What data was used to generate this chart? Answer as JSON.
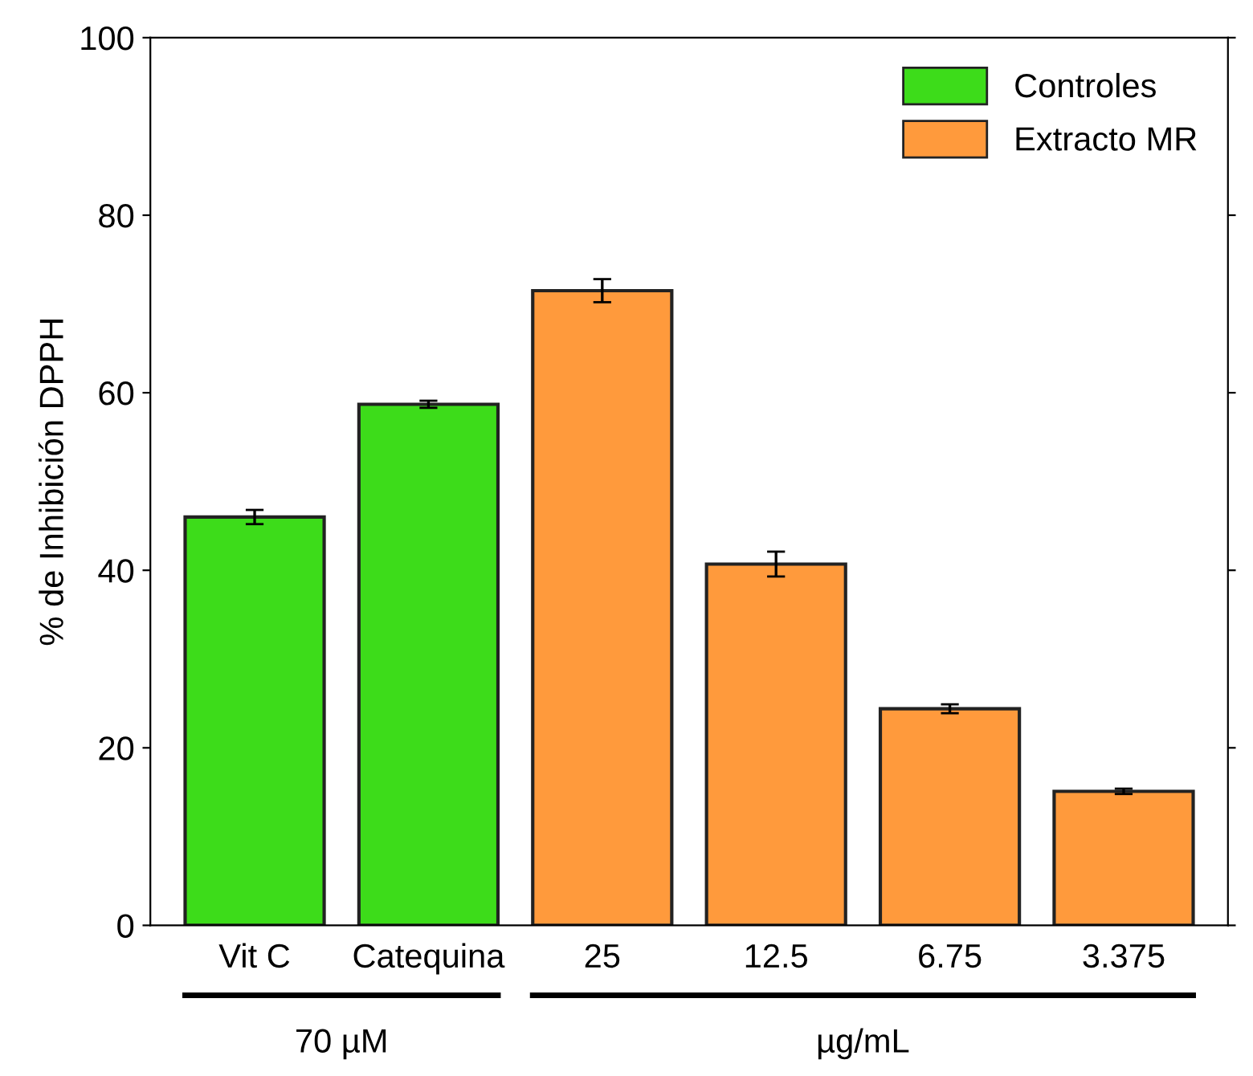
{
  "chart_data": {
    "type": "bar",
    "ylabel": "% de Inhibición DPPH",
    "categories": [
      "Vit C",
      "Catequina",
      "25",
      "12.5",
      "6.75",
      "3.375"
    ],
    "series": [
      {
        "name": "Controles",
        "color": "#3ddc1a",
        "values": [
          46.0,
          58.7,
          null,
          null,
          null,
          null
        ],
        "errors": [
          0.8,
          0.4,
          null,
          null,
          null,
          null
        ]
      },
      {
        "name": "Extracto MR",
        "color": "#ff9a3c",
        "values": [
          null,
          null,
          71.5,
          40.7,
          24.4,
          15.1
        ],
        "errors": [
          null,
          null,
          1.3,
          1.4,
          0.5,
          0.3
        ]
      }
    ],
    "ylim": [
      0,
      100
    ],
    "yticks": [
      0,
      20,
      40,
      60,
      80,
      100
    ],
    "annotations": [
      "70 µM",
      "µg/mL"
    ],
    "grid": false,
    "legend": "top right"
  }
}
